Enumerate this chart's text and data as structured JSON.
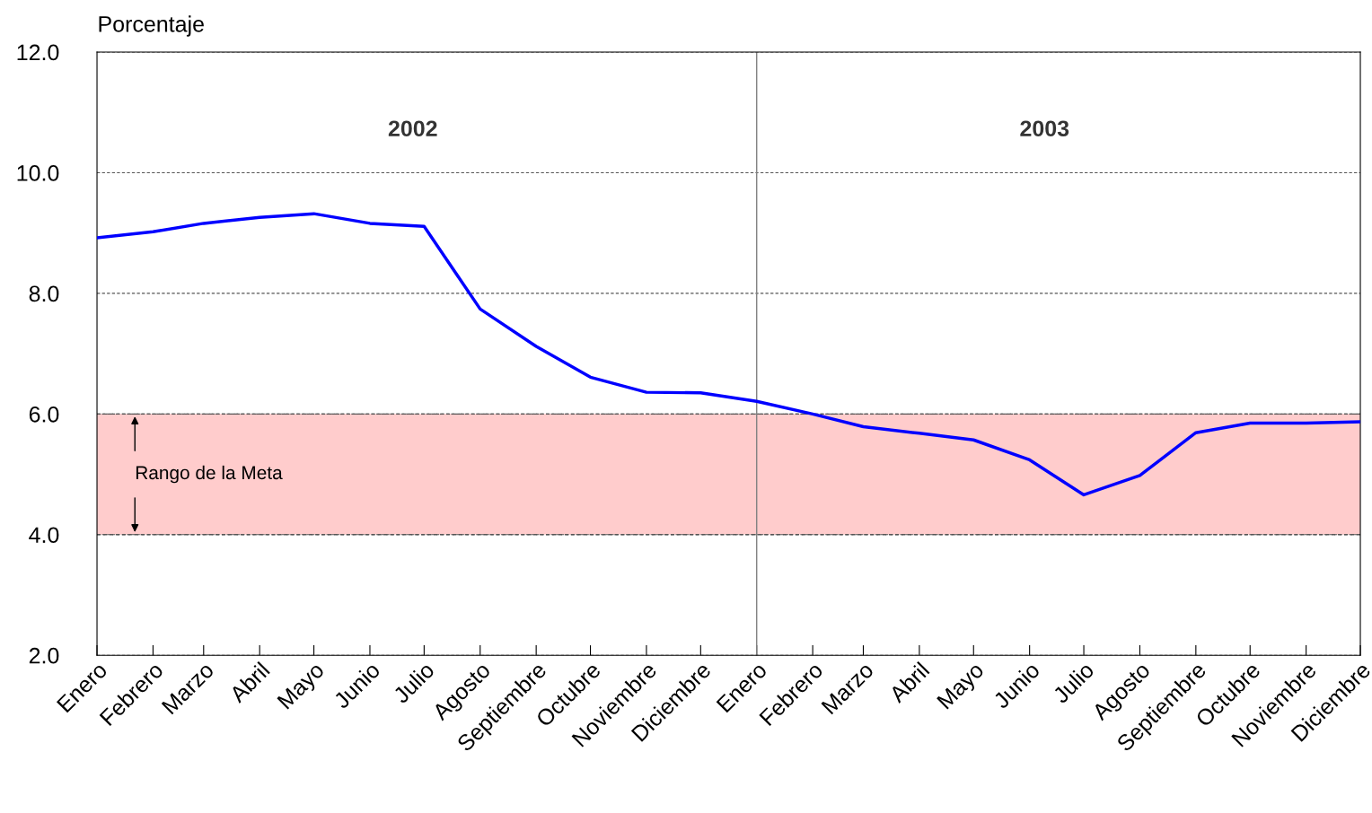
{
  "chart_data": {
    "type": "line",
    "ylabel": "Porcentaje",
    "x": [
      "2002-01",
      "2002-02",
      "2002-03",
      "2002-04",
      "2002-05",
      "2002-06",
      "2002-07",
      "2002-08",
      "2002-09",
      "2002-10",
      "2002-11",
      "2002-12",
      "2003-01",
      "2003-02",
      "2003-03",
      "2003-04",
      "2003-05",
      "2003-06",
      "2003-07",
      "2003-08",
      "2003-09",
      "2003-10",
      "2003-11",
      "2003-12"
    ],
    "series": [
      {
        "color": "#0000ff",
        "values": [
          8.92,
          9.02,
          9.16,
          9.26,
          9.32,
          9.16,
          9.11,
          7.74,
          7.12,
          6.61,
          6.36,
          6.35,
          6.21,
          6.0,
          5.79,
          5.68,
          5.57,
          5.24,
          4.66,
          4.98,
          5.69,
          5.85,
          5.85,
          5.87
        ]
      }
    ],
    "xlim": [
      "2002-01",
      "2003-12"
    ],
    "xticks": [
      {
        "value": "2002-01",
        "label": "Enero"
      },
      {
        "value": "2002-02",
        "label": "Febrero"
      },
      {
        "value": "2002-03",
        "label": "Marzo"
      },
      {
        "value": "2002-04",
        "label": "Abril"
      },
      {
        "value": "2002-05",
        "label": "Mayo"
      },
      {
        "value": "2002-06",
        "label": "Junio"
      },
      {
        "value": "2002-07",
        "label": "Julio"
      },
      {
        "value": "2002-08",
        "label": "Agosto"
      },
      {
        "value": "2002-09",
        "label": "Septiembre"
      },
      {
        "value": "2002-10",
        "label": "Octubre"
      },
      {
        "value": "2002-11",
        "label": "Noviembre"
      },
      {
        "value": "2002-12",
        "label": "Diciembre"
      },
      {
        "value": "2003-01",
        "label": "Enero"
      },
      {
        "value": "2003-02",
        "label": "Febrero"
      },
      {
        "value": "2003-03",
        "label": "Marzo"
      },
      {
        "value": "2003-04",
        "label": "Abril"
      },
      {
        "value": "2003-05",
        "label": "Mayo"
      },
      {
        "value": "2003-06",
        "label": "Junio"
      },
      {
        "value": "2003-07",
        "label": "Julio"
      },
      {
        "value": "2003-08",
        "label": "Agosto"
      },
      {
        "value": "2003-09",
        "label": "Septiembre"
      },
      {
        "value": "2003-10",
        "label": "Octubre"
      },
      {
        "value": "2003-11",
        "label": "Noviembre"
      },
      {
        "value": "2003-12",
        "label": "Diciembre"
      }
    ],
    "ylim": [
      2,
      12
    ],
    "yticks": [
      {
        "value": 2,
        "label": "2.0"
      },
      {
        "value": 4,
        "label": "4.0"
      },
      {
        "value": 6,
        "label": "6.0"
      },
      {
        "value": 8,
        "label": "8.0"
      },
      {
        "value": 10,
        "label": "10.0"
      },
      {
        "value": 12,
        "label": "12.0"
      }
    ],
    "grid": "y",
    "line_style": "solid",
    "marker": "none",
    "bands": [
      {
        "axis": "y",
        "from": 4,
        "to": 6,
        "label": "Rango de la Meta",
        "color": "#ffcccc"
      }
    ],
    "ref_lines": [
      {
        "axis": "x",
        "value": "2003-01",
        "color": "#808080"
      }
    ],
    "annotations": [
      "2002",
      "2003"
    ]
  }
}
